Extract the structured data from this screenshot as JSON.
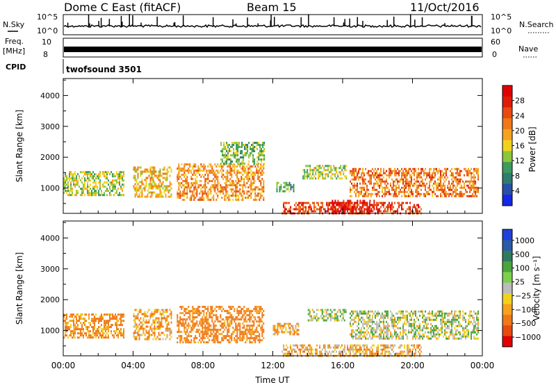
{
  "header": {
    "title": "Dome C East (fitACF)",
    "beam": "Beam 15",
    "date": "11/Oct/2016"
  },
  "params": {
    "nsky_label": "N.Sky",
    "nsky_ticks": [
      "10^5",
      "10^0"
    ],
    "nsearch_label": "N.Search",
    "nsearch_ticks": [
      "10^5",
      "10^0"
    ],
    "freq_label": "Freq.",
    "freq_unit": "[MHz]",
    "freq_ticks": [
      "10",
      "8"
    ],
    "nave_label": "Nave",
    "nave_ticks": [
      "60",
      "0"
    ],
    "cpid_label": "CPID",
    "cpid_value": "twofsound 3501"
  },
  "chart_data": [
    {
      "type": "heatmap",
      "name": "power",
      "ylabel": "Slant Range [km]",
      "xlabel": "",
      "xticks": [
        "00:00",
        "04:00",
        "08:00",
        "12:00",
        "16:00",
        "20:00",
        "00:00"
      ],
      "yticks": [
        1000,
        2000,
        3000,
        4000
      ],
      "xlim": [
        0,
        24
      ],
      "ylim": [
        180,
        4550
      ],
      "colorbar": {
        "label": "Power [dB]",
        "ticks": [
          "4",
          "8",
          "12",
          "16",
          "20",
          "24",
          "28"
        ],
        "tick_values": [
          4,
          8,
          12,
          16,
          20,
          24,
          28
        ],
        "range": [
          0,
          32
        ],
        "colors": [
          "#1428e6",
          "#2850a8",
          "#2e7d6e",
          "#3d9b5c",
          "#8cc63a",
          "#f0d21e",
          "#f5a21e",
          "#f07818",
          "#e84a10",
          "#e01a0a",
          "#e00000"
        ]
      },
      "regions": [
        {
          "t0": 0.0,
          "t1": 3.5,
          "r0": 750,
          "r1": 1550,
          "v": 14
        },
        {
          "t0": 4.0,
          "t1": 6.2,
          "r0": 700,
          "r1": 1700,
          "v": 18
        },
        {
          "t0": 6.5,
          "t1": 11.5,
          "r0": 650,
          "r1": 1800,
          "v": 20
        },
        {
          "t0": 9.0,
          "t1": 11.5,
          "r0": 1800,
          "r1": 2500,
          "v": 12
        },
        {
          "t0": 12.2,
          "t1": 13.2,
          "r0": 900,
          "r1": 1200,
          "v": 10
        },
        {
          "t0": 13.7,
          "t1": 16.2,
          "r0": 1300,
          "r1": 1750,
          "v": 14
        },
        {
          "t0": 16.4,
          "t1": 23.8,
          "r0": 750,
          "r1": 1650,
          "v": 22
        },
        {
          "t0": 12.5,
          "t1": 20.5,
          "r0": 180,
          "r1": 550,
          "v": 26
        },
        {
          "t0": 15.3,
          "t1": 17.8,
          "r0": 200,
          "r1": 620,
          "v": 30
        }
      ]
    },
    {
      "type": "heatmap",
      "name": "velocity",
      "ylabel": "Slant Range [km]",
      "xlabel": "Time UT",
      "xticks": [
        "00:00",
        "04:00",
        "08:00",
        "12:00",
        "16:00",
        "20:00",
        "00:00"
      ],
      "yticks": [
        1000,
        2000,
        3000,
        4000
      ],
      "xlim": [
        0,
        24
      ],
      "ylim": [
        180,
        4550
      ],
      "colorbar": {
        "label": "Velocity [m s⁻¹]",
        "ticks": [
          "1000",
          "500",
          "100",
          "25",
          "−25",
          "−100",
          "−500",
          "−1000"
        ],
        "colors": [
          "#2040d8",
          "#2a5aa8",
          "#2f7a5e",
          "#4aa63c",
          "#7cd04c",
          "#bcbcbc",
          "#f0d21e",
          "#f5a21e",
          "#f07818",
          "#e84a10",
          "#e00000"
        ]
      },
      "regions": [
        {
          "t0": 0.0,
          "t1": 3.5,
          "r0": 750,
          "r1": 1550,
          "v": -120
        },
        {
          "t0": 4.0,
          "t1": 6.2,
          "r0": 700,
          "r1": 1700,
          "v": -80
        },
        {
          "t0": 6.5,
          "t1": 11.5,
          "r0": 650,
          "r1": 1800,
          "v": -150
        },
        {
          "t0": 12.0,
          "t1": 13.5,
          "r0": 850,
          "r1": 1250,
          "v": -60
        },
        {
          "t0": 14.0,
          "t1": 16.2,
          "r0": 1300,
          "r1": 1700,
          "v": 80
        },
        {
          "t0": 16.4,
          "t1": 23.8,
          "r0": 750,
          "r1": 1650,
          "v": 60
        },
        {
          "t0": 12.5,
          "t1": 20.5,
          "r0": 180,
          "r1": 550,
          "v": -40
        }
      ]
    }
  ]
}
